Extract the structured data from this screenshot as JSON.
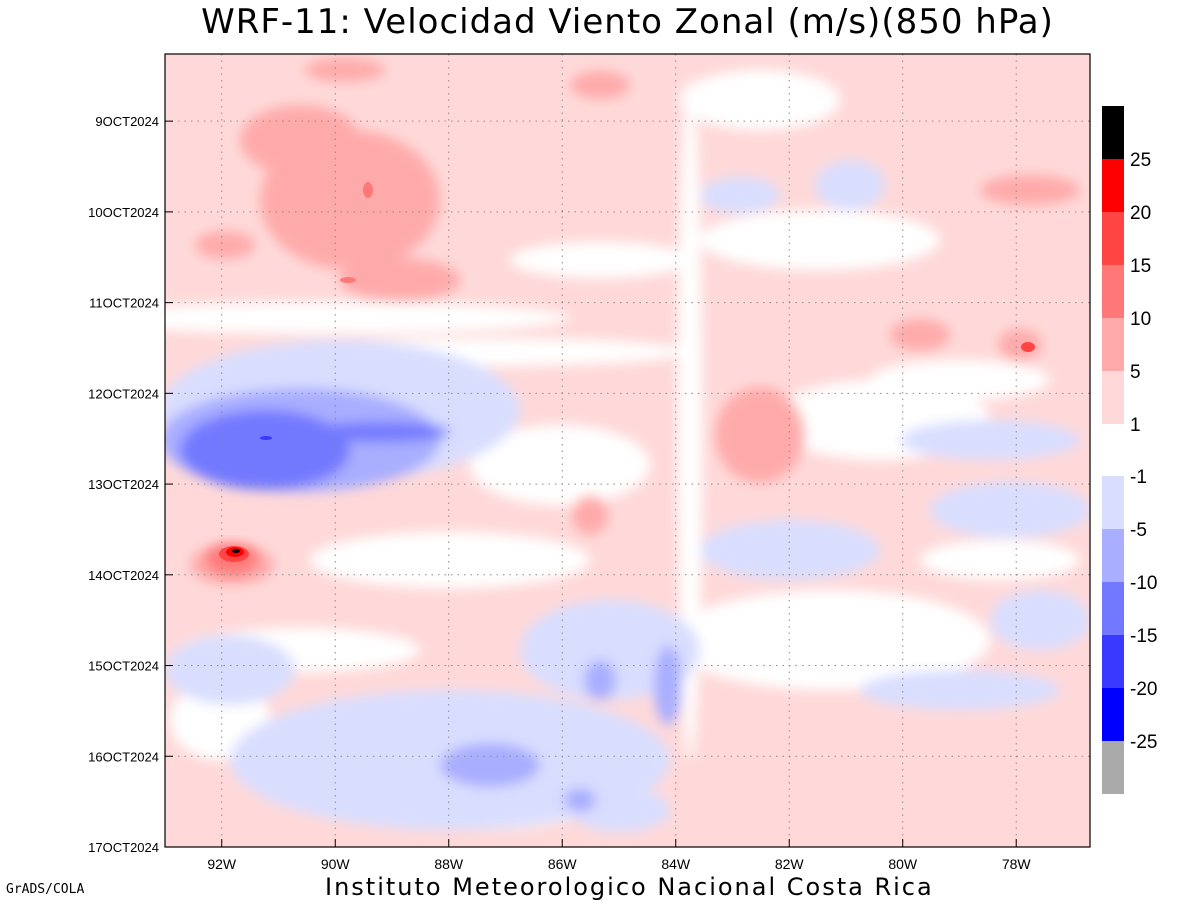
{
  "title": "WRF-11: Velocidad  Viento Zonal (m/s)(850 hPa)",
  "footer": {
    "left": "GrADS/COLA",
    "center": "Instituto Meteorologico Nacional Costa Rica"
  },
  "chart_data": {
    "type": "heatmap",
    "title": "WRF-11: Velocidad  Viento Zonal (m/s)(850 hPa)",
    "xlabel": "",
    "ylabel": "",
    "x_axis": {
      "range": [
        -93.0,
        -76.7
      ],
      "ticks": [
        -92,
        -90,
        -88,
        -86,
        -84,
        -82,
        -80,
        -78
      ],
      "tick_labels": [
        "92W",
        "90W",
        "88W",
        "86W",
        "84W",
        "82W",
        "80W",
        "78W"
      ]
    },
    "y_axis": {
      "range": [
        8.26,
        17.0
      ],
      "ticks": [
        9,
        10,
        11,
        12,
        13,
        14,
        15,
        16,
        17
      ],
      "tick_labels": [
        "9OCT2024",
        "10OCT2024",
        "11OCT2024",
        "12OCT2024",
        "13OCT2024",
        "14OCT2024",
        "15OCT2024",
        "16OCT2024",
        "17OCT2024"
      ],
      "inverted": true
    },
    "grid": true,
    "grid_style": "dotted",
    "legend": {
      "placement": "right",
      "upper_bins": [
        {
          "lower": 1,
          "upper": 5,
          "color": "#FFD9D9"
        },
        {
          "lower": 5,
          "upper": 10,
          "color": "#FFAAAA"
        },
        {
          "lower": 10,
          "upper": 15,
          "color": "#FF7878"
        },
        {
          "lower": 15,
          "upper": 20,
          "color": "#FF4444"
        },
        {
          "lower": 20,
          "upper": 25,
          "color": "#FF0000"
        },
        {
          "lower": 25,
          "upper": null,
          "color": "#000000"
        }
      ],
      "upper_labels": [
        "25",
        "20",
        "15",
        "10",
        "5",
        "1"
      ],
      "lower_bins": [
        {
          "lower": -5,
          "upper": -1,
          "color": "#D9DEFF"
        },
        {
          "lower": -10,
          "upper": -5,
          "color": "#A9AEFF"
        },
        {
          "lower": -15,
          "upper": -10,
          "color": "#7379FF"
        },
        {
          "lower": -20,
          "upper": -15,
          "color": "#3A3AFF"
        },
        {
          "lower": -25,
          "upper": -20,
          "color": "#0000FF"
        },
        {
          "lower": null,
          "upper": -25,
          "color": "#AAAAAA"
        }
      ],
      "lower_labels": [
        "-1",
        "-5",
        "-10",
        "-15",
        "-20",
        "-25"
      ]
    },
    "features": [
      {
        "lon": -91.8,
        "date": 13.6,
        "value": 27,
        "label": "strong westerly core (black)"
      },
      {
        "lon": -91.2,
        "date": 12.45,
        "value": -14,
        "label": "easterly maximum"
      },
      {
        "lon": -82.5,
        "date": 12.5,
        "value": 7
      },
      {
        "lon": -90.5,
        "date": 9.8,
        "value": 7
      },
      {
        "lon": -87.5,
        "date": 16.15,
        "value": -7
      }
    ]
  }
}
